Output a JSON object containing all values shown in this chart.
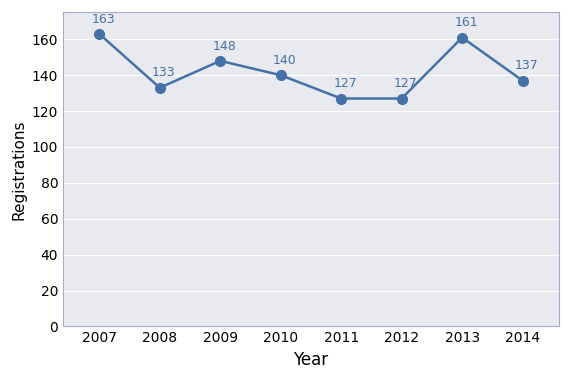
{
  "years": [
    2007,
    2008,
    2009,
    2010,
    2011,
    2012,
    2013,
    2014
  ],
  "values": [
    163,
    133,
    148,
    140,
    127,
    127,
    161,
    137
  ],
  "line_color": "#4472a8",
  "marker_color": "#4472a8",
  "xlabel": "Year",
  "ylabel": "Registrations",
  "xlim": [
    2006.4,
    2014.6
  ],
  "ylim": [
    0,
    175
  ],
  "yticks": [
    0,
    20,
    40,
    60,
    80,
    100,
    120,
    140,
    160
  ],
  "xlabel_fontsize": 12,
  "ylabel_fontsize": 11,
  "tick_fontsize": 10,
  "annotation_fontsize": 9,
  "background_color": "#ffffff",
  "plot_bg_color": "#e8eaf0",
  "grid_color": "#ffffff",
  "spine_color": "#aaaacc",
  "marker_size": 7,
  "line_width": 1.8
}
